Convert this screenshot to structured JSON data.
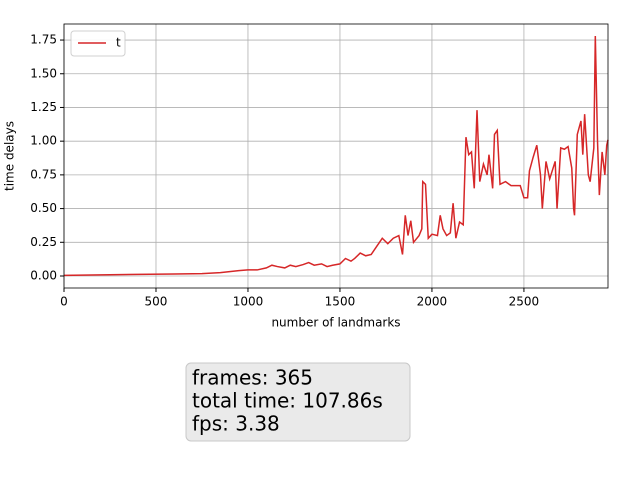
{
  "chart_data": {
    "type": "line",
    "xlabel": "number of landmarks",
    "ylabel": "time delays",
    "x": [
      0,
      200,
      400,
      600,
      750,
      850,
      950,
      1000,
      1050,
      1100,
      1130,
      1160,
      1200,
      1230,
      1260,
      1300,
      1330,
      1360,
      1400,
      1430,
      1460,
      1500,
      1530,
      1560,
      1580,
      1610,
      1640,
      1670,
      1700,
      1730,
      1760,
      1790,
      1820,
      1840,
      1855,
      1870,
      1885,
      1900,
      1930,
      1945,
      1950,
      1965,
      1980,
      2000,
      2030,
      2045,
      2060,
      2080,
      2100,
      2115,
      2130,
      2150,
      2170,
      2185,
      2200,
      2215,
      2230,
      2245,
      2260,
      2280,
      2300,
      2310,
      2330,
      2340,
      2355,
      2370,
      2400,
      2430,
      2480,
      2500,
      2520,
      2530,
      2550,
      2570,
      2590,
      2600,
      2620,
      2640,
      2670,
      2680,
      2700,
      2720,
      2740,
      2760,
      2770,
      2775,
      2790,
      2810,
      2820,
      2830,
      2850,
      2860,
      2880,
      2888,
      2900,
      2910,
      2925,
      2940,
      2950,
      2957
    ],
    "series": [
      {
        "name": "t",
        "color": "#d62728",
        "values": [
          0.005,
          0.008,
          0.012,
          0.015,
          0.018,
          0.025,
          0.04,
          0.045,
          0.045,
          0.06,
          0.08,
          0.07,
          0.06,
          0.08,
          0.07,
          0.085,
          0.1,
          0.08,
          0.09,
          0.07,
          0.08,
          0.09,
          0.13,
          0.11,
          0.13,
          0.17,
          0.15,
          0.16,
          0.22,
          0.28,
          0.24,
          0.28,
          0.3,
          0.16,
          0.45,
          0.3,
          0.41,
          0.25,
          0.3,
          0.35,
          0.7,
          0.68,
          0.28,
          0.31,
          0.3,
          0.45,
          0.35,
          0.3,
          0.32,
          0.54,
          0.28,
          0.4,
          0.38,
          1.03,
          0.9,
          0.92,
          0.65,
          1.23,
          0.7,
          0.83,
          0.75,
          0.9,
          0.65,
          1.05,
          1.08,
          0.68,
          0.7,
          0.67,
          0.67,
          0.58,
          0.58,
          0.78,
          0.88,
          0.97,
          0.75,
          0.5,
          0.85,
          0.72,
          0.85,
          0.5,
          0.95,
          0.94,
          0.96,
          0.8,
          0.5,
          0.45,
          1.05,
          1.15,
          0.9,
          1.2,
          0.75,
          0.7,
          0.95,
          1.78,
          1.0,
          0.6,
          0.92,
          0.75,
          0.97,
          1.01
        ]
      }
    ],
    "xlim": [
      0,
      2957
    ],
    "ylim": [
      -0.089,
      1.869
    ],
    "xticks": [
      0,
      500,
      1000,
      1500,
      2000,
      2500
    ],
    "yticks": [
      {
        "value": 0,
        "label": "0.00"
      },
      {
        "value": 0.25,
        "label": "0.25"
      },
      {
        "value": 0.5,
        "label": "0.50"
      },
      {
        "value": 0.75,
        "label": "0.75"
      },
      {
        "value": 1,
        "label": "1.00"
      },
      {
        "value": 1.25,
        "label": "1.25"
      },
      {
        "value": 1.5,
        "label": "1.50"
      },
      {
        "value": 1.75,
        "label": "1.75"
      }
    ],
    "grid": true,
    "legend": "upper left",
    "annotations": [
      "frames: 365",
      "total time: 107.86s",
      "fps: 3.38"
    ]
  }
}
